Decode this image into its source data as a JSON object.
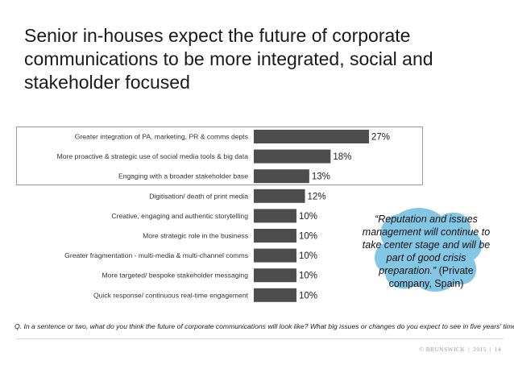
{
  "title_lines": [
    "Senior in-houses expect the future of corporate",
    "communications to be more integrated, social and",
    "stakeholder focused"
  ],
  "chart_data": {
    "type": "bar",
    "orientation": "horizontal",
    "categories": [
      "Greater integration of PA, marketing, PR & comms depts",
      "More proactive & strategic use of social media tools & big data",
      "Engaging with a broader stakeholder base",
      "Digitisation/ death of print media",
      "Creative, engaging and authentic storytelling",
      "More strategic role in the business",
      "Greater fragmentation - multi-media & multi-channel comms",
      "More targeted/ bespoke stakeholder messaging",
      "Quick response/ continuous real-time engagement"
    ],
    "values": [
      27,
      18,
      13,
      12,
      10,
      10,
      10,
      10,
      10
    ],
    "data_labels": [
      "27%",
      "18%",
      "13%",
      "12%",
      "10%",
      "10%",
      "10%",
      "10%",
      "10%"
    ],
    "unit": "%",
    "highlighted_count": 3,
    "xlim": [
      0,
      27
    ],
    "bar_color": "#4d4d4d",
    "grid": false,
    "legend": "none"
  },
  "quote": {
    "text": "“Reputation and issues management will continue to take center stage and will be part of good crisis preparation.”",
    "attribution": "(Private company, Spain)",
    "blob_color": "#5ab4dc"
  },
  "question": "Q.  In a sentence or two, what do you think the future of corporate communications will look like?  What big issues or changes do you expect to see in five years' time?",
  "footer": {
    "copyright": "© BRUNSWICK",
    "year": "2015",
    "page": "14"
  }
}
